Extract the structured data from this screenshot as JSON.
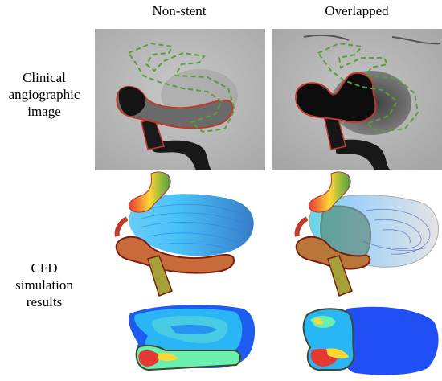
{
  "columns": {
    "non_stent": "Non-stent",
    "overlapped": "Overlapped"
  },
  "rows": {
    "clinical_line1": "Clinical",
    "clinical_line2": "angiographic",
    "clinical_line3": "image",
    "cfd_line1": "CFD",
    "cfd_line2": "simulation",
    "cfd_line3": "results"
  },
  "colors": {
    "background": "#ffffff",
    "angio_background": "#bdbdbd",
    "vessel_dark": "#111111",
    "outline_red": "#c0392b",
    "outline_green_dashed": "#5a9e3a",
    "stent_outline": "#4a5a3a",
    "velocity_high": "#d7191c",
    "velocity_mid": "#ffff33",
    "velocity_low": "#2b83ba",
    "velocity_min": "#0b3cf0"
  },
  "icons": [
    "angiography-image",
    "streamline-plot",
    "velocity-contour-plot"
  ]
}
